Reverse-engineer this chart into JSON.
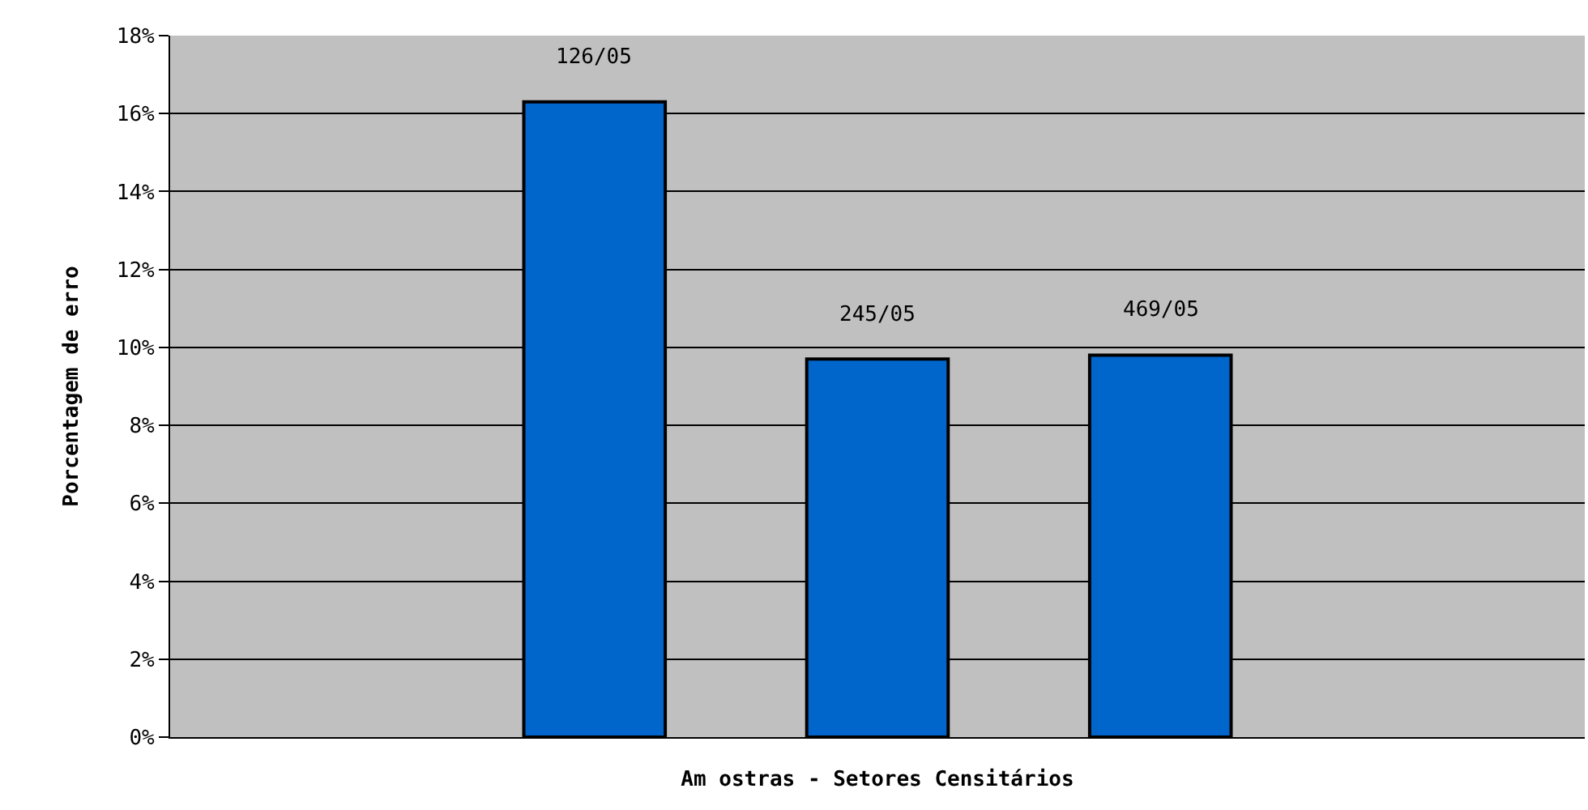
{
  "chart_data": {
    "type": "bar",
    "xlabel": "Am ostras - Setores Censitários",
    "ylabel": "Porcentagem de erro",
    "categories": [
      null,
      null,
      null,
      null,
      null
    ],
    "values": [
      null,
      16.3,
      9.7,
      9.8,
      null
    ],
    "value_labels": [
      null,
      "126/05",
      "245/05",
      "469/05",
      null
    ],
    "color": "#0066cc",
    "ylim": [
      0,
      18
    ],
    "yticks": [
      {
        "value": 0,
        "label": "0%"
      },
      {
        "value": 2,
        "label": "2%"
      },
      {
        "value": 4,
        "label": "4%"
      },
      {
        "value": 6,
        "label": "6%"
      },
      {
        "value": 8,
        "label": "8%"
      },
      {
        "value": 10,
        "label": "10%"
      },
      {
        "value": 12,
        "label": "12%"
      },
      {
        "value": 14,
        "label": "14%"
      },
      {
        "value": 16,
        "label": "16%"
      },
      {
        "value": 18,
        "label": "18%"
      }
    ],
    "grid": "y"
  }
}
